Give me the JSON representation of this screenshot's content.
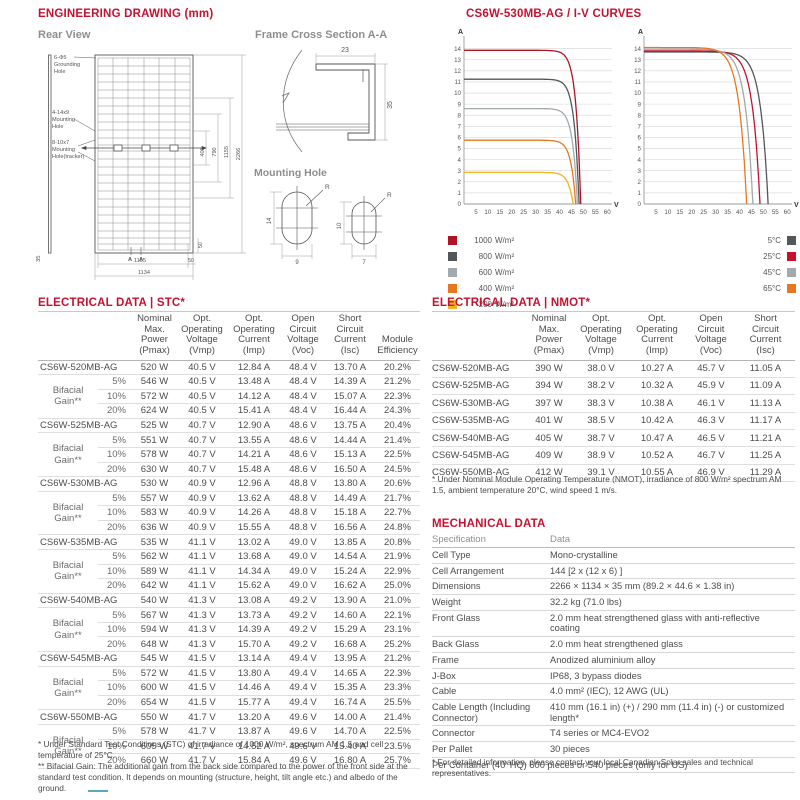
{
  "engineering": {
    "title": "ENGINEERING DRAWING (mm)",
    "rear_view": "Rear View",
    "cross_section": "Frame Cross Section A-A",
    "mounting_hole": "Mounting Hole",
    "labels": {
      "grounding": [
        "6-Φ5",
        "Grounding",
        "Hole"
      ],
      "mounting": [
        "4-14x9",
        "Mounting",
        "Hole"
      ],
      "tracker": [
        "8-10x7",
        "Mounting",
        "Hole(tracker)"
      ]
    },
    "dims": {
      "total_h": "2266",
      "d1155": "1155",
      "d790": "790",
      "d400": "400",
      "w_inner": "1105",
      "w_total": "1134",
      "d50": "50",
      "side_t": "35",
      "cs_w": "23",
      "cs_h": "35",
      "hole1_h": "14",
      "hole1_w": "9",
      "hole1_r": "R",
      "hole2_h": "10",
      "hole2_w": "7",
      "hole2_r": "R",
      "section_mark": "A"
    }
  },
  "iv": {
    "title": "CS6W-530MB-AG / I-V CURVES",
    "y_unit": "A",
    "x_unit": "V"
  },
  "chart_data": [
    {
      "type": "line",
      "title": "I-V curves at different irradiance levels",
      "xlabel": "V",
      "ylabel": "A",
      "xlim": [
        0,
        62
      ],
      "ylim": [
        0,
        14.6
      ],
      "xticks": [
        5,
        10,
        15,
        20,
        25,
        30,
        35,
        40,
        45,
        50,
        55,
        60
      ],
      "yticks": [
        0,
        1,
        2,
        3,
        4,
        5,
        6,
        7,
        8,
        9,
        10,
        11,
        12,
        13,
        14
      ],
      "grid": "horizontal",
      "legend_position": "below-left",
      "knee_softness": 2.0,
      "series": [
        {
          "name": "1000 W/m²",
          "color": "#b01324",
          "isc": 13.85,
          "voc": 48.9
        },
        {
          "name": "800 W/m²",
          "color": "#53565a",
          "isc": 11.25,
          "voc": 48.2
        },
        {
          "name": "600 W/m²",
          "color": "#a2aaad",
          "isc": 8.6,
          "voc": 47.5
        },
        {
          "name": "400 W/m²",
          "color": "#e87722",
          "isc": 5.75,
          "voc": 46.8
        },
        {
          "name": "200 W/m²",
          "color": "#f0b323",
          "isc": 2.85,
          "voc": 45.7
        }
      ]
    },
    {
      "type": "line",
      "title": "I-V curves at different cell temperatures",
      "xlabel": "V",
      "ylabel": "A",
      "xlim": [
        0,
        62
      ],
      "ylim": [
        0,
        14.6
      ],
      "xticks": [
        5,
        10,
        15,
        20,
        25,
        30,
        35,
        40,
        45,
        50,
        55,
        60
      ],
      "yticks": [
        0,
        1,
        2,
        3,
        4,
        5,
        6,
        7,
        8,
        9,
        10,
        11,
        12,
        13,
        14
      ],
      "grid": "horizontal",
      "legend_position": "below-right",
      "knee_softness": 3.2,
      "series": [
        {
          "name": "5°C",
          "color": "#53565a",
          "isc": 13.7,
          "voc": 52.0
        },
        {
          "name": "25°C",
          "color": "#c8102e",
          "isc": 13.8,
          "voc": 48.6
        },
        {
          "name": "45°C",
          "color": "#a2aaad",
          "isc": 13.95,
          "voc": 45.6
        },
        {
          "name": "65°C",
          "color": "#e87722",
          "isc": 14.1,
          "voc": 43.0
        }
      ]
    }
  ],
  "stc": {
    "title": "ELECTRICAL DATA | STC*",
    "bifacial_label": "Bifacial\nGain**",
    "headers": [
      "Nominal\nMax.\nPower\n(Pmax)",
      "Opt.\nOperating\nVoltage\n(Vmp)",
      "Opt.\nOperating\nCurrent\n(Imp)",
      "Open\nCircuit\nVoltage\n(Voc)",
      "Short\nCircuit\nCurrent\n(Isc)",
      "Module\nEfficiency"
    ],
    "groups": [
      {
        "model": "CS6W-520MB-AG",
        "main": [
          "520 W",
          "40.5 V",
          "12.84 A",
          "48.4 V",
          "13.70 A",
          "20.2%"
        ],
        "gains": [
          {
            "pct": "5%",
            "vals": [
              "546 W",
              "40.5 V",
              "13.48 A",
              "48.4 V",
              "14.39 A",
              "21.2%"
            ]
          },
          {
            "pct": "10%",
            "vals": [
              "572 W",
              "40.5 V",
              "14.12 A",
              "48.4 V",
              "15.07 A",
              "22.3%"
            ]
          },
          {
            "pct": "20%",
            "vals": [
              "624 W",
              "40.5 V",
              "15.41 A",
              "48.4 V",
              "16.44 A",
              "24.3%"
            ]
          }
        ]
      },
      {
        "model": "CS6W-525MB-AG",
        "main": [
          "525 W",
          "40.7 V",
          "12.90 A",
          "48.6 V",
          "13.75 A",
          "20.4%"
        ],
        "gains": [
          {
            "pct": "5%",
            "vals": [
              "551 W",
              "40.7 V",
              "13.55 A",
              "48.6 V",
              "14.44 A",
              "21.4%"
            ]
          },
          {
            "pct": "10%",
            "vals": [
              "578 W",
              "40.7 V",
              "14.21 A",
              "48.6 V",
              "15.13 A",
              "22.5%"
            ]
          },
          {
            "pct": "20%",
            "vals": [
              "630 W",
              "40.7 V",
              "15.48 A",
              "48.6 V",
              "16.50 A",
              "24.5%"
            ]
          }
        ]
      },
      {
        "model": "CS6W-530MB-AG",
        "main": [
          "530 W",
          "40.9 V",
          "12.96 A",
          "48.8 V",
          "13.80 A",
          "20.6%"
        ],
        "gains": [
          {
            "pct": "5%",
            "vals": [
              "557 W",
              "40.9 V",
              "13.62 A",
              "48.8 V",
              "14.49 A",
              "21.7%"
            ]
          },
          {
            "pct": "10%",
            "vals": [
              "583 W",
              "40.9 V",
              "14.26 A",
              "48.8 V",
              "15.18 A",
              "22.7%"
            ]
          },
          {
            "pct": "20%",
            "vals": [
              "636 W",
              "40.9 V",
              "15.55 A",
              "48.8 V",
              "16.56 A",
              "24.8%"
            ]
          }
        ]
      },
      {
        "model": "CS6W-535MB-AG",
        "main": [
          "535 W",
          "41.1 V",
          "13.02 A",
          "49.0 V",
          "13.85 A",
          "20.8%"
        ],
        "gains": [
          {
            "pct": "5%",
            "vals": [
              "562 W",
              "41.1 V",
              "13.68 A",
              "49.0 V",
              "14.54 A",
              "21.9%"
            ]
          },
          {
            "pct": "10%",
            "vals": [
              "589 W",
              "41.1 V",
              "14.34 A",
              "49.0 V",
              "15.24 A",
              "22.9%"
            ]
          },
          {
            "pct": "20%",
            "vals": [
              "642 W",
              "41.1 V",
              "15.62 A",
              "49.0 V",
              "16.62 A",
              "25.0%"
            ]
          }
        ]
      },
      {
        "model": "CS6W-540MB-AG",
        "main": [
          "540 W",
          "41.3 V",
          "13.08 A",
          "49.2 V",
          "13.90 A",
          "21.0%"
        ],
        "gains": [
          {
            "pct": "5%",
            "vals": [
              "567 W",
              "41.3 V",
              "13.73 A",
              "49.2 V",
              "14.60 A",
              "22.1%"
            ]
          },
          {
            "pct": "10%",
            "vals": [
              "594 W",
              "41.3 V",
              "14.39 A",
              "49.2 V",
              "15.29 A",
              "23.1%"
            ]
          },
          {
            "pct": "20%",
            "vals": [
              "648 W",
              "41.3 V",
              "15.70 A",
              "49.2 V",
              "16.68 A",
              "25.2%"
            ]
          }
        ]
      },
      {
        "model": "CS6W-545MB-AG",
        "main": [
          "545 W",
          "41.5 V",
          "13.14 A",
          "49.4 V",
          "13.95 A",
          "21.2%"
        ],
        "gains": [
          {
            "pct": "5%",
            "vals": [
              "572 W",
              "41.5 V",
              "13.80 A",
              "49.4 V",
              "14.65 A",
              "22.3%"
            ]
          },
          {
            "pct": "10%",
            "vals": [
              "600 W",
              "41.5 V",
              "14.46 A",
              "49.4 V",
              "15.35 A",
              "23.3%"
            ]
          },
          {
            "pct": "20%",
            "vals": [
              "654 W",
              "41.5 V",
              "15.77 A",
              "49.4 V",
              "16.74 A",
              "25.5%"
            ]
          }
        ]
      },
      {
        "model": "CS6W-550MB-AG",
        "main": [
          "550 W",
          "41.7 V",
          "13.20 A",
          "49.6 V",
          "14.00 A",
          "21.4%"
        ],
        "gains": [
          {
            "pct": "5%",
            "vals": [
              "578 W",
              "41.7 V",
              "13.87 A",
              "49.6 V",
              "14.70 A",
              "22.5%"
            ]
          },
          {
            "pct": "10%",
            "vals": [
              "605 W",
              "41.7 V",
              "14.52 A",
              "49.6 V",
              "15.40 A",
              "23.5%"
            ]
          },
          {
            "pct": "20%",
            "vals": [
              "660 W",
              "41.7 V",
              "15.84 A",
              "49.6 V",
              "16.80 A",
              "25.7%"
            ]
          }
        ]
      }
    ],
    "footnote1": "* Under Standard Test Conditions (STC) of irradiance of 1000 W/m², spectrum AM 1.5 and cell temperature of 25°C.",
    "footnote2": "** Bifacial Gain: The additional gain from the back side compared to the power of the front side at the standard test condition. It depends on mounting (structure, height, tilt angle etc.) and albedo of the ground."
  },
  "nmot": {
    "title": "ELECTRICAL DATA | NMOT*",
    "headers": [
      "Nominal\nMax.\nPower\n(Pmax)",
      "Opt.\nOperating\nVoltage\n(Vmp)",
      "Opt.\nOperating\nCurrent\n(Imp)",
      "Open\nCircuit\nVoltage\n(Voc)",
      "Short\nCircuit\nCurrent\n(Isc)"
    ],
    "rows": [
      [
        "CS6W-520MB-AG",
        "390 W",
        "38.0 V",
        "10.27 A",
        "45.7 V",
        "11.05 A"
      ],
      [
        "CS6W-525MB-AG",
        "394 W",
        "38.2 V",
        "10.32 A",
        "45.9 V",
        "11.09 A"
      ],
      [
        "CS6W-530MB-AG",
        "397 W",
        "38.3 V",
        "10.38 A",
        "46.1 V",
        "11.13 A"
      ],
      [
        "CS6W-535MB-AG",
        "401 W",
        "38.5 V",
        "10.42 A",
        "46.3 V",
        "11.17 A"
      ],
      [
        "CS6W-540MB-AG",
        "405 W",
        "38.7 V",
        "10.47 A",
        "46.5 V",
        "11.21 A"
      ],
      [
        "CS6W-545MB-AG",
        "409 W",
        "38.9 V",
        "10.52 A",
        "46.7 V",
        "11.25 A"
      ],
      [
        "CS6W-550MB-AG",
        "412 W",
        "39.1 V",
        "10.55 A",
        "46.9 V",
        "11.29 A"
      ]
    ],
    "footnote": "* Under Nominal Module Operating Temperature (NMOT), irradiance of 800 W/m² spectrum AM 1.5, ambient temperature 20°C, wind speed 1 m/s."
  },
  "mechanical": {
    "title": "MECHANICAL DATA",
    "headers": [
      "Specification",
      "Data"
    ],
    "rows": [
      {
        "spec": "Cell Type",
        "val": "Mono-crystalline"
      },
      {
        "spec": "Cell Arrangement",
        "val": "144 [2 x (12 x 6) ]"
      },
      {
        "spec": "Dimensions",
        "val": "2266 × 1134 × 35 mm (89.2 × 44.6 × 1.38 in)"
      },
      {
        "spec": "Weight",
        "val": "32.2 kg (71.0 lbs)"
      },
      {
        "spec": "Front Glass",
        "val": "2.0 mm heat strengthened glass with anti-reflective coating"
      },
      {
        "spec": "Back Glass",
        "val": "2.0 mm heat strengthened glass"
      },
      {
        "spec": "Frame",
        "val": "Anodized aluminium alloy"
      },
      {
        "spec": "J-Box",
        "val": "IP68, 3 bypass diodes"
      },
      {
        "spec": "Cable",
        "val": "4.0 mm² (IEC), 12 AWG (UL)"
      },
      {
        "spec": "Cable Length (Including Connector)",
        "val": "410 mm (16.1 in) (+) / 290 mm (11.4 in) (-) or customized length*"
      },
      {
        "spec": "Connector",
        "val": "T4 series or MC4-EVO2"
      },
      {
        "spec": "Per Pallet",
        "val": "30 pieces"
      },
      {
        "spec": "Per Container (40' HQ)",
        "val": "600 pieces or 540 pieces (only for US)",
        "merged": true
      }
    ],
    "footnote": "* For detailed information, please contact your local Canadian Solar sales and technical representatives."
  }
}
